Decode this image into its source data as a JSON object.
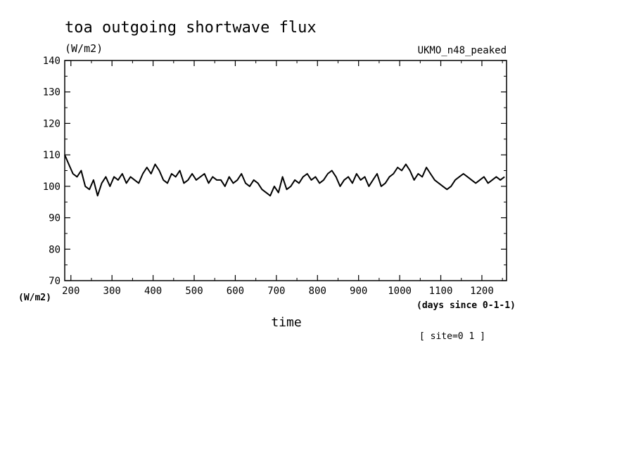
{
  "chart_data": {
    "type": "line",
    "title": "toa outgoing shortwave flux",
    "units_label": "(W/m2)",
    "y_axis_unit_label": "(W/m2)",
    "model_label": "UKMO_n48_peaked",
    "xlabel": "time",
    "x_axis_unit_label": "(days since 0-1-1)",
    "footnote": "[ site=0 1 ]",
    "xlim": [
      185,
      1260
    ],
    "ylim": [
      70,
      140
    ],
    "x_ticks": [
      200,
      300,
      400,
      500,
      600,
      700,
      800,
      900,
      1000,
      1100,
      1200
    ],
    "y_ticks": [
      70,
      80,
      90,
      100,
      110,
      120,
      130,
      140
    ],
    "grid": false,
    "legend": "none",
    "series": [
      {
        "x": [
          185,
          195,
          205,
          215,
          225,
          235,
          245,
          255,
          265,
          275,
          285,
          295,
          305,
          315,
          325,
          335,
          345,
          355,
          365,
          375,
          385,
          395,
          405,
          415,
          425,
          435,
          445,
          455,
          465,
          475,
          485,
          495,
          505,
          515,
          525,
          535,
          545,
          555,
          565,
          575,
          585,
          595,
          605,
          615,
          625,
          635,
          645,
          655,
          665,
          675,
          685,
          695,
          705,
          715,
          725,
          735,
          745,
          755,
          765,
          775,
          785,
          795,
          805,
          815,
          825,
          835,
          845,
          855,
          865,
          875,
          885,
          895,
          905,
          915,
          925,
          935,
          945,
          955,
          965,
          975,
          985,
          995,
          1005,
          1015,
          1025,
          1035,
          1045,
          1055,
          1065,
          1075,
          1085,
          1095,
          1105,
          1115,
          1125,
          1135,
          1145,
          1155,
          1165,
          1175,
          1185,
          1195,
          1205,
          1215,
          1225,
          1235,
          1245,
          1255
        ],
        "y": [
          110,
          107,
          104,
          103,
          105,
          100,
          99,
          102,
          97,
          101,
          103,
          100,
          103,
          102,
          104,
          101,
          103,
          102,
          101,
          104,
          106,
          104,
          107,
          105,
          102,
          101,
          104,
          103,
          105,
          101,
          102,
          104,
          102,
          103,
          104,
          101,
          103,
          102,
          102,
          100,
          103,
          101,
          102,
          104,
          101,
          100,
          102,
          101,
          99,
          98,
          97,
          100,
          98,
          103,
          99,
          100,
          102,
          101,
          103,
          104,
          102,
          103,
          101,
          102,
          104,
          105,
          103,
          100,
          102,
          103,
          101,
          104,
          102,
          103,
          100,
          102,
          104,
          100,
          101,
          103,
          104,
          106,
          105,
          107,
          105,
          102,
          104,
          103,
          106,
          104,
          102,
          101,
          100,
          99,
          100,
          102,
          103,
          104,
          103,
          102,
          101,
          102,
          103,
          101,
          102,
          103,
          102,
          103
        ]
      }
    ]
  }
}
